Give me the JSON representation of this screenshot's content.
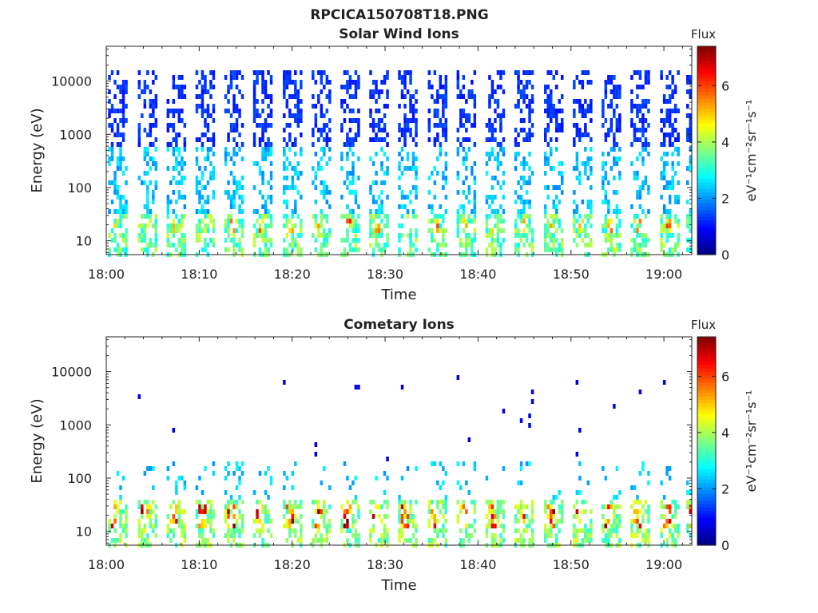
{
  "page": {
    "title": "RPCICA150708T18.PNG"
  },
  "colorbar": {
    "label": "Flux",
    "unit_label": "eV⁻¹cm⁻²sr⁻¹s⁻¹",
    "range": [
      0,
      7.4
    ],
    "ticks": [
      "0",
      "2",
      "4",
      "6"
    ],
    "colormap": "jet"
  },
  "chart_data": [
    {
      "type": "heatmap",
      "title": "Solar Wind Ions",
      "xlabel": "Time",
      "ylabel": "Energy (eV)",
      "x_range_minutes": [
        0,
        63
      ],
      "x_ticks": [
        {
          "minute": 0,
          "label": "18:00"
        },
        {
          "minute": 10,
          "label": "18:10"
        },
        {
          "minute": 20,
          "label": "18:20"
        },
        {
          "minute": 30,
          "label": "18:30"
        },
        {
          "minute": 40,
          "label": "18:40"
        },
        {
          "minute": 50,
          "label": "18:50"
        },
        {
          "minute": 60,
          "label": "19:00"
        }
      ],
      "y_scale": "log",
      "y_range": [
        5.5,
        45000
      ],
      "y_ticks": [
        {
          "v": 10,
          "label": "10"
        },
        {
          "v": 100,
          "label": "100"
        },
        {
          "v": 1000,
          "label": "1000"
        },
        {
          "v": 10000,
          "label": "10000"
        }
      ],
      "sweep_start_minutes": [
        0.2,
        3.4,
        6.5,
        9.6,
        12.7,
        15.8,
        19.0,
        22.1,
        25.2,
        28.3,
        31.4,
        34.6,
        37.7,
        40.8,
        43.9,
        47.1,
        50.2,
        53.3,
        56.4,
        59.6,
        62.4
      ],
      "ion_population": "solar_wind",
      "flux_range": [
        0,
        7.4
      ]
    },
    {
      "type": "heatmap",
      "title": "Cometary Ions",
      "xlabel": "Time",
      "ylabel": "Energy (eV)",
      "x_range_minutes": [
        0,
        63
      ],
      "x_ticks": [
        {
          "minute": 0,
          "label": "18:00"
        },
        {
          "minute": 10,
          "label": "18:10"
        },
        {
          "minute": 20,
          "label": "18:20"
        },
        {
          "minute": 30,
          "label": "18:30"
        },
        {
          "minute": 40,
          "label": "18:40"
        },
        {
          "minute": 50,
          "label": "18:50"
        },
        {
          "minute": 60,
          "label": "19:00"
        }
      ],
      "y_scale": "log",
      "y_range": [
        5.5,
        45000
      ],
      "y_ticks": [
        {
          "v": 10,
          "label": "10"
        },
        {
          "v": 100,
          "label": "100"
        },
        {
          "v": 1000,
          "label": "1000"
        },
        {
          "v": 10000,
          "label": "10000"
        }
      ],
      "sweep_start_minutes": [
        0.2,
        3.4,
        6.5,
        9.6,
        12.7,
        15.8,
        19.0,
        22.1,
        25.2,
        28.3,
        31.4,
        34.6,
        37.7,
        40.8,
        43.9,
        47.1,
        50.2,
        53.3,
        56.4,
        59.6,
        62.4
      ],
      "ion_population": "cometary",
      "flux_range": [
        0,
        7.4
      ]
    }
  ]
}
